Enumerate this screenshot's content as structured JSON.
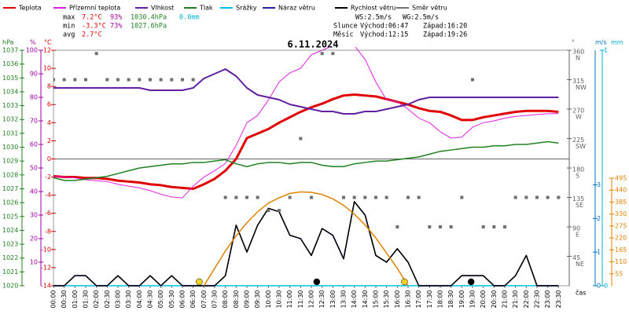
{
  "chart_data": {
    "type": "line",
    "title": "6.11.2024",
    "x_label": "čas",
    "categories": [
      "00:00",
      "00:30",
      "01:00",
      "01:30",
      "02:00",
      "02:30",
      "03:00",
      "03:30",
      "04:00",
      "04:30",
      "05:00",
      "05:30",
      "06:00",
      "06:30",
      "07:00",
      "07:30",
      "08:00",
      "08:30",
      "09:00",
      "09:30",
      "10:00",
      "10:30",
      "11:00",
      "11:30",
      "12:00",
      "12:30",
      "13:00",
      "13:30",
      "14:00",
      "14:30",
      "15:00",
      "15:30",
      "16:00",
      "16:30",
      "17:00",
      "17:30",
      "18:00",
      "18:30",
      "19:00",
      "19:30",
      "20:00",
      "20:30",
      "21:00",
      "21:30",
      "22:00",
      "22:30",
      "23:00",
      "23:30"
    ],
    "axes": {
      "pressure": {
        "label": "hPa",
        "lim": [
          1020,
          1037
        ],
        "ticks": [
          1020,
          1021,
          1022,
          1023,
          1024,
          1025,
          1026,
          1027,
          1028,
          1029,
          1030,
          1031,
          1032,
          1033,
          1034,
          1035,
          1036,
          1037
        ],
        "color": "#208020"
      },
      "humidity": {
        "label": "%",
        "lim": [
          0,
          100
        ],
        "ticks": [
          10,
          20,
          30,
          40,
          50,
          60,
          70,
          80,
          90,
          100
        ],
        "color": "#a000a0"
      },
      "temperature": {
        "label": "°C",
        "lim": [
          -14,
          12
        ],
        "ticks": [
          -14,
          -12,
          -10,
          -8,
          -6,
          -4,
          -2,
          0,
          2,
          4,
          6,
          8,
          10,
          12
        ],
        "color": "#d00000"
      },
      "direction": {
        "label": "°",
        "lim": [
          0,
          360
        ],
        "ticks": [
          45,
          90,
          135,
          180,
          225,
          270,
          315,
          360
        ],
        "tick_names": [
          "NE",
          "E",
          "SE",
          "S",
          "SW",
          "W",
          "NW",
          "N"
        ],
        "color": "#606060"
      },
      "wind": {
        "label": "m/s",
        "lim": [
          0,
          7
        ],
        "ticks": [
          0,
          1,
          2,
          3
        ],
        "color": "#0070c0"
      },
      "rain": {
        "label": "mm",
        "lim": [
          0,
          1
        ],
        "ticks": [
          0,
          1
        ],
        "color": "#00b0d0"
      },
      "sun": {
        "lim": [
          0,
          1084
        ],
        "ticks": [
          55,
          110,
          165,
          220,
          275,
          330,
          385,
          440,
          495
        ],
        "color": "#e08000"
      }
    },
    "series": [
      {
        "name": "Teplota",
        "color": "#e00000",
        "axis": "temperature",
        "width": 3,
        "values": [
          -1.9,
          -2.0,
          -2.0,
          -2.1,
          -2.1,
          -2.2,
          -2.4,
          -2.5,
          -2.6,
          -2.8,
          -2.9,
          -3.1,
          -3.2,
          -3.3,
          -2.8,
          -2.2,
          -1.3,
          0.0,
          2.3,
          2.8,
          3.3,
          4.0,
          4.6,
          5.2,
          5.7,
          6.1,
          6.6,
          7.0,
          7.1,
          7.0,
          6.9,
          6.6,
          6.3,
          6.0,
          5.6,
          5.3,
          5.2,
          4.8,
          4.3,
          4.3,
          4.6,
          4.8,
          5.0,
          5.2,
          5.3,
          5.3,
          5.3,
          5.2
        ]
      },
      {
        "name": "Přízemní teplota",
        "color": "#e020e0",
        "axis": "temperature",
        "width": 1,
        "values": [
          -1.9,
          -2.0,
          -2.1,
          -2.3,
          -2.4,
          -2.5,
          -2.8,
          -3.0,
          -3.2,
          -3.5,
          -3.9,
          -4.2,
          -4.3,
          -3.0,
          -2.0,
          -1.3,
          -0.5,
          1.5,
          4.0,
          4.8,
          6.5,
          8.5,
          9.5,
          10.0,
          11.5,
          12.0,
          12.5,
          13.0,
          12.5,
          11.0,
          8.5,
          6.5,
          6.3,
          5.5,
          4.5,
          4.0,
          3.0,
          2.3,
          2.4,
          3.5,
          4.0,
          4.2,
          4.5,
          4.7,
          4.8,
          4.9,
          5.0,
          5.0
        ]
      },
      {
        "name": "Vlhkost",
        "color": "#6020a0",
        "axis": "humidity",
        "width": 2,
        "values": [
          84,
          84,
          84,
          84,
          84,
          84,
          84,
          84,
          84,
          83,
          83,
          83,
          83,
          84,
          88,
          90,
          92,
          89,
          84,
          81,
          80,
          79,
          77,
          76,
          75,
          74,
          74,
          73,
          73,
          74,
          74,
          75,
          76,
          77,
          79,
          80,
          80,
          80,
          80,
          80,
          80,
          80,
          80,
          80,
          80,
          80,
          80,
          80
        ]
      },
      {
        "name": "Tlak",
        "color": "#208020",
        "axis": "pressure",
        "width": 1.5,
        "values": [
          1027.8,
          1027.6,
          1027.6,
          1027.7,
          1027.8,
          1027.9,
          1028.1,
          1028.3,
          1028.5,
          1028.6,
          1028.7,
          1028.8,
          1028.8,
          1028.9,
          1028.9,
          1029.0,
          1029.1,
          1028.8,
          1028.6,
          1028.8,
          1028.9,
          1028.9,
          1028.8,
          1028.9,
          1028.9,
          1028.7,
          1028.6,
          1028.6,
          1028.8,
          1028.9,
          1029.0,
          1029.0,
          1029.1,
          1029.2,
          1029.3,
          1029.5,
          1029.7,
          1029.8,
          1029.9,
          1030.0,
          1030.0,
          1030.1,
          1030.1,
          1030.2,
          1030.2,
          1030.3,
          1030.4,
          1030.3
        ]
      },
      {
        "name": "Srážky",
        "color": "#00c0e0",
        "axis": "rain",
        "width": 1.5,
        "values": [
          0,
          0,
          0,
          0,
          0,
          0,
          0,
          0,
          0,
          0,
          0,
          0,
          0,
          0,
          0,
          0,
          0,
          0,
          0,
          0,
          0,
          0,
          0,
          0,
          0,
          0,
          0,
          0,
          0,
          0,
          0,
          0,
          0,
          0,
          0,
          0,
          0,
          0,
          0,
          0,
          0,
          0,
          0,
          0,
          0,
          0,
          0,
          0
        ]
      },
      {
        "name": "Náraz větru",
        "color": "#2020a0",
        "axis": "wind",
        "width": 1.5,
        "values": [
          0,
          0,
          0.3,
          0.3,
          0,
          0,
          0.3,
          0,
          0,
          0.3,
          0,
          0.3,
          0,
          0,
          0,
          0,
          0.3,
          1.8,
          1.0,
          1.8,
          2.3,
          2.2,
          1.5,
          1.4,
          0.9,
          1.7,
          1.5,
          0.8,
          2.5,
          2.1,
          0.9,
          0.7,
          1.1,
          0.7,
          0,
          0,
          0,
          0,
          0.3,
          0.3,
          0.3,
          0,
          0,
          0.3,
          0.9,
          0,
          0,
          0
        ]
      },
      {
        "name": "Rychlost větru",
        "color": "#000000",
        "axis": "wind",
        "width": 1.5,
        "values": [
          0,
          0,
          0.3,
          0.3,
          0,
          0,
          0.3,
          0,
          0,
          0.3,
          0,
          0.3,
          0,
          0,
          0,
          0,
          0.3,
          1.8,
          1.0,
          1.8,
          2.3,
          2.2,
          1.5,
          1.4,
          0.9,
          1.7,
          1.5,
          0.8,
          2.5,
          2.1,
          0.9,
          0.7,
          1.1,
          0.7,
          0,
          0,
          0,
          0,
          0.3,
          0.3,
          0.3,
          0,
          0,
          0.3,
          0.9,
          0,
          0,
          0
        ]
      },
      {
        "name": "Směr větru",
        "color": "#707070",
        "axis": "direction",
        "kind": "scatter",
        "values": [
          315,
          315,
          315,
          315,
          355,
          315,
          315,
          315,
          315,
          315,
          315,
          315,
          315,
          315,
          null,
          null,
          135,
          135,
          135,
          135,
          115,
          115,
          135,
          225,
          135,
          355,
          355,
          135,
          135,
          135,
          135,
          135,
          90,
          135,
          135,
          90,
          90,
          90,
          135,
          315,
          90,
          90,
          90,
          135,
          135,
          135,
          135,
          135
        ]
      },
      {
        "color": "#e08000",
        "axis": "sun",
        "width": 1.5,
        "values": [
          null,
          null,
          null,
          null,
          null,
          null,
          null,
          null,
          null,
          null,
          null,
          null,
          null,
          null,
          0,
          80,
          160,
          230,
          290,
          340,
          380,
          405,
          425,
          432,
          430,
          420,
          400,
          370,
          330,
          280,
          220,
          150,
          80,
          0,
          null,
          null,
          null,
          null,
          null,
          null,
          null,
          null,
          null,
          null,
          null,
          null,
          null,
          null
        ]
      }
    ],
    "stats": [
      {
        "label": "max",
        "temperature": "7.2°C",
        "humidity": "93%",
        "pressure": "1030.4hPa",
        "rain": "0.0mm"
      },
      {
        "label": "min",
        "temperature": "-3.3°C",
        "humidity": "73%",
        "pressure": "1027.6hPa"
      },
      {
        "label": "avg",
        "temperature": "2.7°C"
      }
    ],
    "wind_stats": {
      "ws": "WS:2.5m/s",
      "wg": "WG:2.5m/s"
    },
    "sun": {
      "label": "Slunce",
      "rise": "Východ:06:47",
      "set": "Západ:16:20",
      "color": "#f0d020"
    },
    "moon": {
      "label": "Měsíc",
      "rise": "Východ:12:15",
      "set": "Západ:19:26",
      "color": "#000000"
    }
  }
}
